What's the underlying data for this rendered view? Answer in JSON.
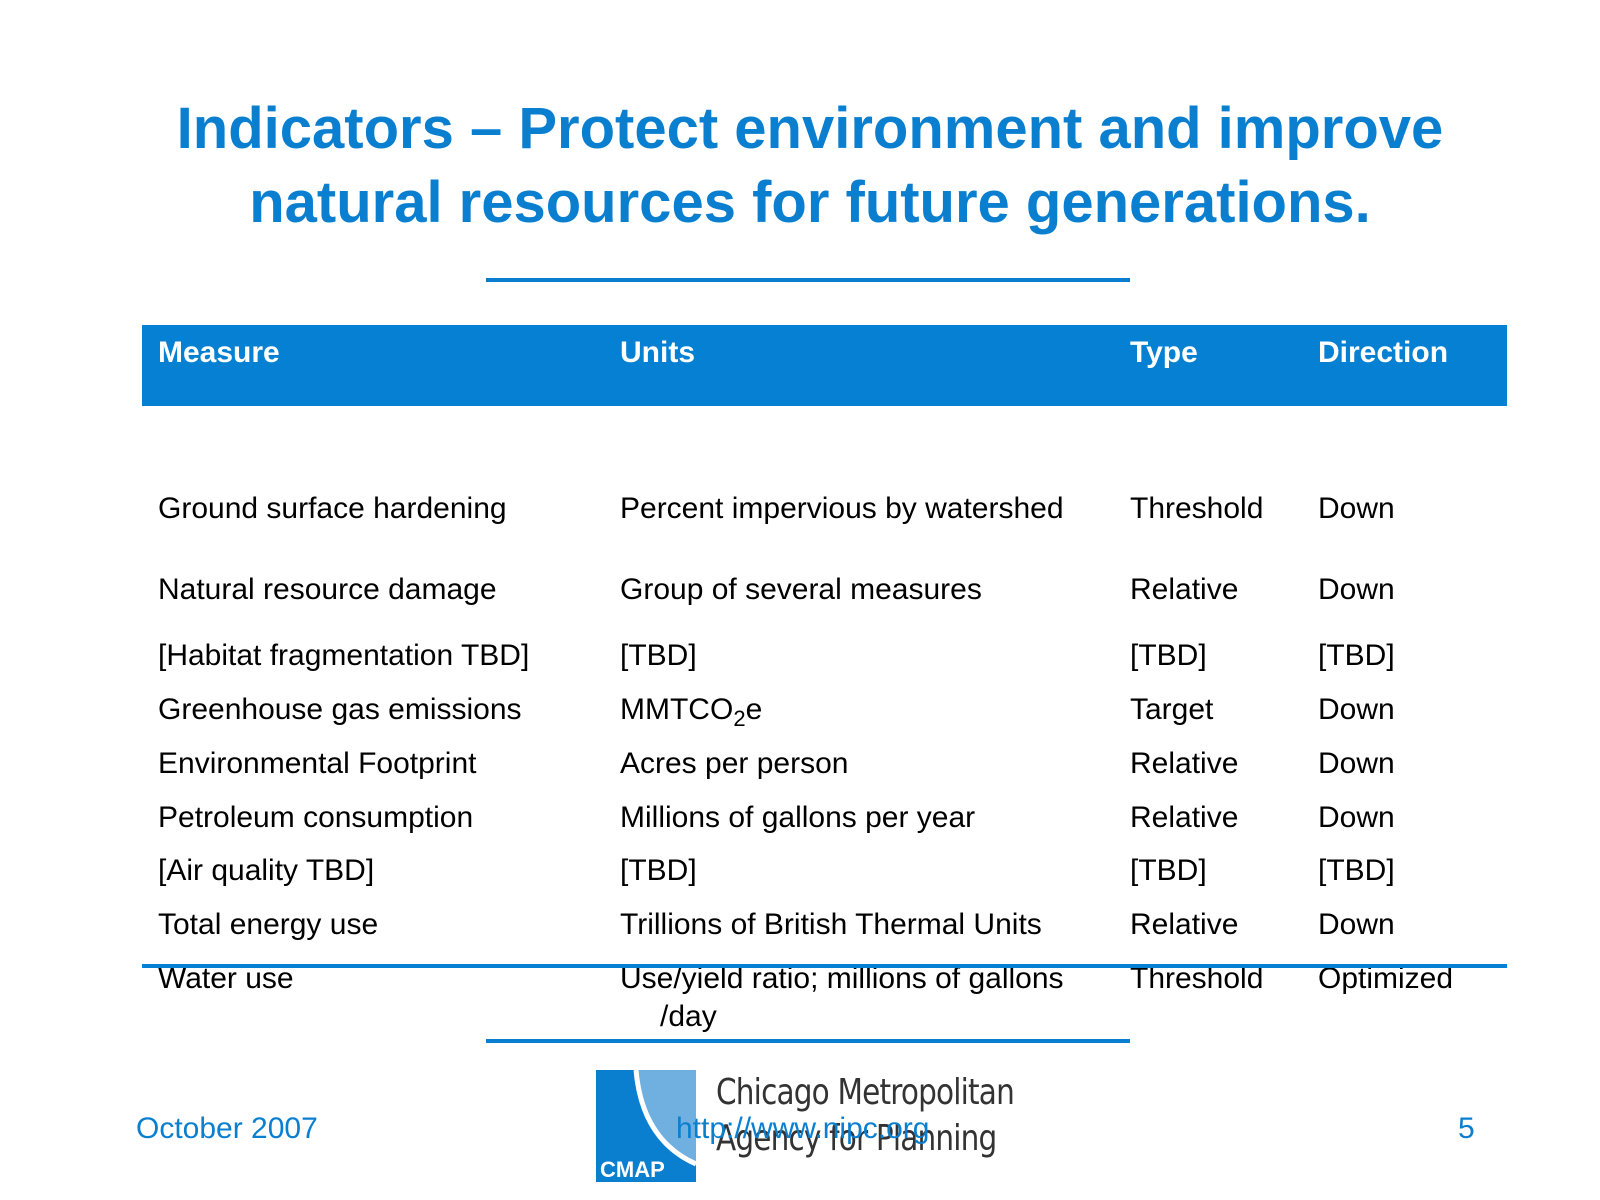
{
  "title": {
    "line1": "Indicators – Protect environment and improve",
    "line2": "natural resources for future generations."
  },
  "table": {
    "headers": {
      "measure": "Measure",
      "units": "Units",
      "type": "Type",
      "direction": "Direction"
    },
    "rows": [
      {
        "measure": "Ground surface hardening",
        "units": "Percent impervious by watershed",
        "type": "Threshold",
        "direction": "Down"
      },
      {
        "measure": "Natural resource damage",
        "units": "Group of several measures",
        "type": "Relative",
        "direction": "Down"
      },
      {
        "measure": "[Habitat fragmentation TBD]",
        "units": "[TBD]",
        "type": "[TBD]",
        "direction": "[TBD]"
      },
      {
        "measure": "Greenhouse gas emissions",
        "units_main": "MMTCO",
        "units_sub": "2",
        "units_tail": "e",
        "type": "Target",
        "direction": "Down"
      },
      {
        "measure": "Environmental Footprint",
        "units": "Acres per person",
        "type": "Relative",
        "direction": "Down"
      },
      {
        "measure": "Petroleum consumption",
        "units": "Millions of gallons per year",
        "type": "Relative",
        "direction": "Down"
      },
      {
        "measure": "[Air quality TBD]",
        "units": "[TBD]",
        "type": "[TBD]",
        "direction": "[TBD]"
      },
      {
        "measure": "Total energy use",
        "units": "Trillions of British Thermal Units",
        "type": "Relative",
        "direction": "Down"
      },
      {
        "measure": "Water use",
        "units_line1": "Use/yield ratio; millions of gallons",
        "units_line2": "/day",
        "type": "Threshold",
        "direction": "Optimized"
      }
    ]
  },
  "footer": {
    "date": "October 2007",
    "url": "http://www.nipc.org",
    "page": "5"
  },
  "logo": {
    "mark_text": "CMAP",
    "line1": "Chicago Metropolitan",
    "line2": "Agency for Planning",
    "colors": {
      "dark": "#0a7fd0",
      "light": "#6fb0e0"
    }
  },
  "colors": {
    "accent": "#0a7fd0",
    "header_bg": "#0580d2"
  }
}
